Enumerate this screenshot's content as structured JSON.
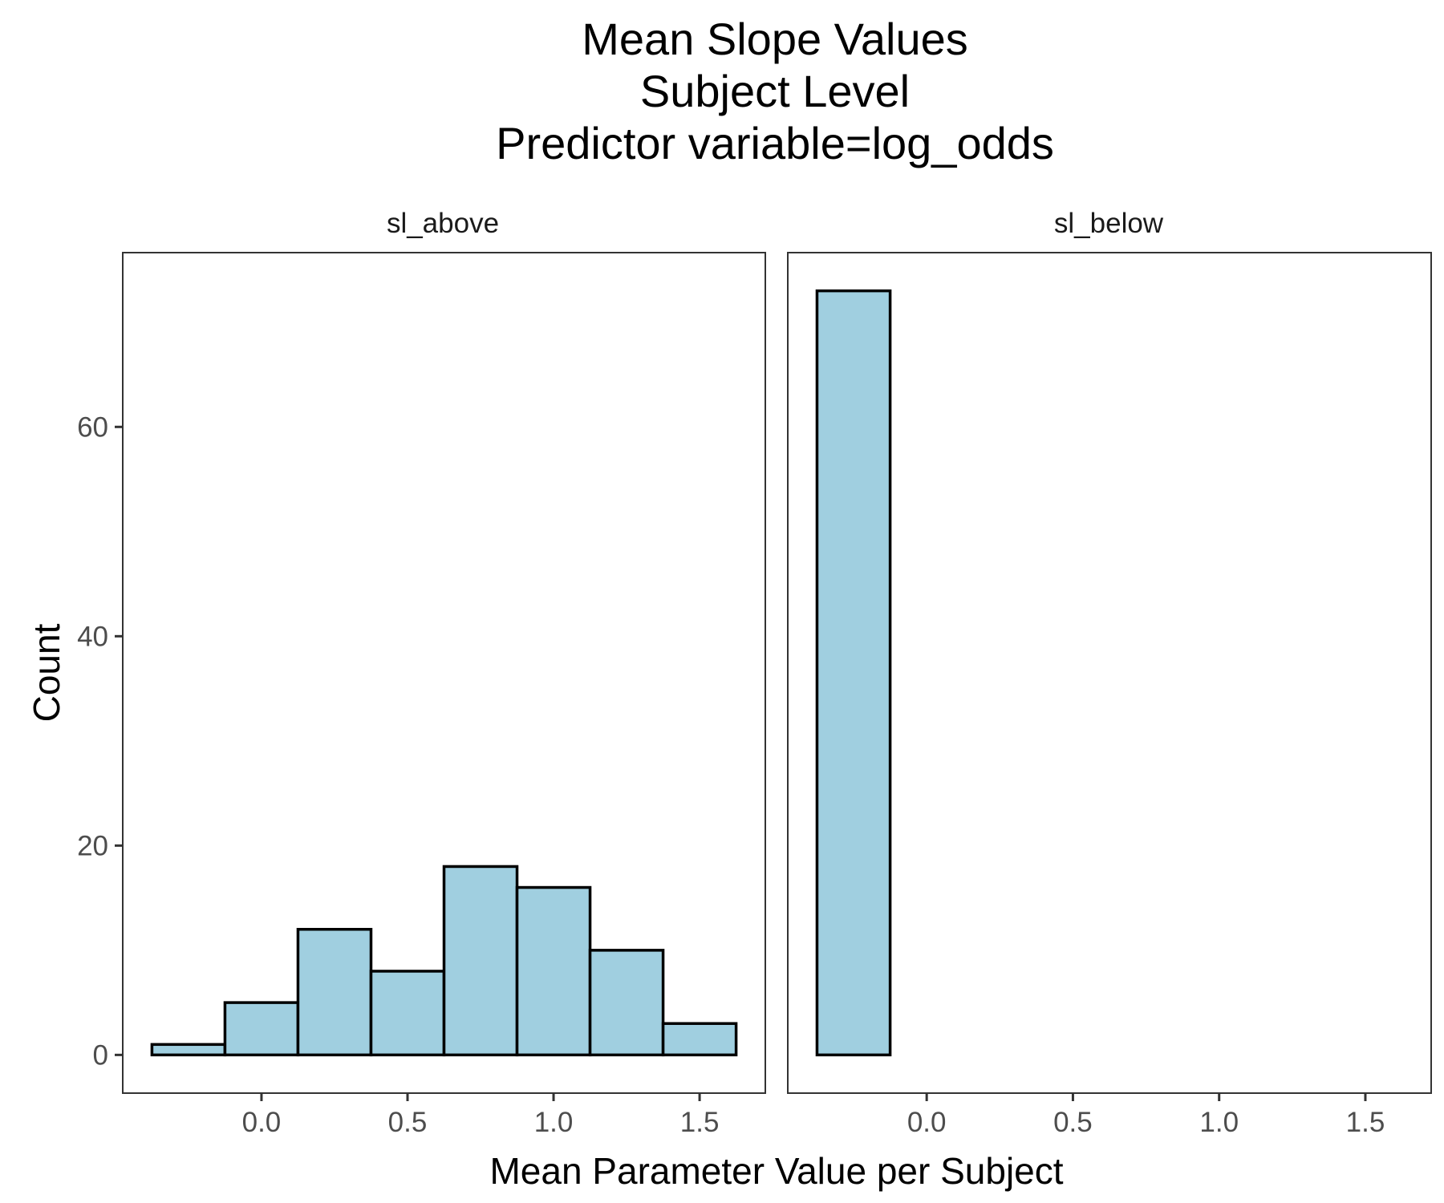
{
  "chart_data": {
    "type": "bar",
    "title_lines": [
      "Mean Slope Values",
      "Subject Level",
      "Predictor variable=log_odds"
    ],
    "xlabel": "Mean Parameter Value per Subject",
    "ylabel": "Count",
    "xlim": [
      -0.475,
      1.725
    ],
    "ylim": [
      -3.65,
      76.65
    ],
    "x_ticks": [
      0.0,
      0.5,
      1.0,
      1.5
    ],
    "x_tick_labels": [
      "0.0",
      "0.5",
      "1.0",
      "1.5"
    ],
    "y_ticks": [
      0,
      20,
      40,
      60
    ],
    "y_tick_labels": [
      "0",
      "20",
      "40",
      "60"
    ],
    "bin_width": 0.25,
    "bar_fill": "#a0cfe0",
    "bar_outline": "#000000",
    "panels": [
      {
        "name": "sl_above",
        "bins": [
          {
            "x0": -0.375,
            "x1": -0.125,
            "count": 1
          },
          {
            "x0": -0.125,
            "x1": 0.125,
            "count": 5
          },
          {
            "x0": 0.125,
            "x1": 0.375,
            "count": 12
          },
          {
            "x0": 0.375,
            "x1": 0.625,
            "count": 8
          },
          {
            "x0": 0.625,
            "x1": 0.875,
            "count": 18
          },
          {
            "x0": 0.875,
            "x1": 1.125,
            "count": 16
          },
          {
            "x0": 1.125,
            "x1": 1.375,
            "count": 10
          },
          {
            "x0": 1.375,
            "x1": 1.625,
            "count": 3
          }
        ]
      },
      {
        "name": "sl_below",
        "bins": [
          {
            "x0": -0.375,
            "x1": -0.125,
            "count": 73
          },
          {
            "x0": -0.125,
            "x1": 0.125,
            "count": 0
          },
          {
            "x0": 0.125,
            "x1": 0.375,
            "count": 0
          },
          {
            "x0": 0.375,
            "x1": 0.625,
            "count": 0
          },
          {
            "x0": 0.625,
            "x1": 0.875,
            "count": 0
          },
          {
            "x0": 0.875,
            "x1": 1.125,
            "count": 0
          },
          {
            "x0": 1.125,
            "x1": 1.375,
            "count": 0
          },
          {
            "x0": 1.375,
            "x1": 1.625,
            "count": 0
          }
        ]
      }
    ]
  }
}
